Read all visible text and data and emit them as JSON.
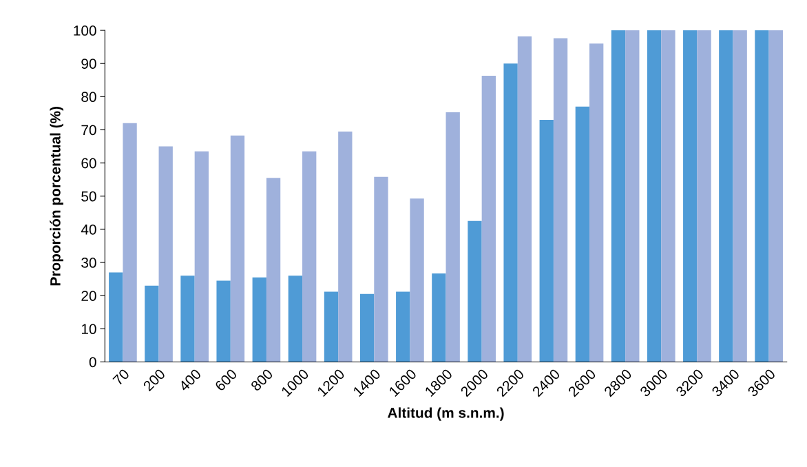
{
  "chart_data": {
    "type": "bar",
    "xlabel": "Altitud (m s.n.m.)",
    "ylabel": "Proporción porcentual (%)",
    "categories": [
      "70",
      "200",
      "400",
      "600",
      "800",
      "1000",
      "1200",
      "1400",
      "1600",
      "1800",
      "2000",
      "2200",
      "2400",
      "2600",
      "2800",
      "3000",
      "3200",
      "3400",
      "3600"
    ],
    "series": [
      {
        "color": "#4f9bd6",
        "values": [
          27,
          23,
          26,
          24.5,
          25.5,
          26,
          21.2,
          20.5,
          21.2,
          26.7,
          42.5,
          90,
          73,
          77,
          100,
          100,
          100,
          100,
          100
        ]
      },
      {
        "color": "#9fb1dc",
        "values": [
          72,
          65,
          63.5,
          68.3,
          55.5,
          63.5,
          69.5,
          55.8,
          49.3,
          75.3,
          86.3,
          98.2,
          97.6,
          96,
          100,
          100,
          100,
          100,
          100
        ]
      }
    ],
    "ylim": [
      0,
      100
    ],
    "yticks": [
      0,
      10,
      20,
      30,
      40,
      50,
      60,
      70,
      80,
      90,
      100
    ],
    "grid": false
  }
}
